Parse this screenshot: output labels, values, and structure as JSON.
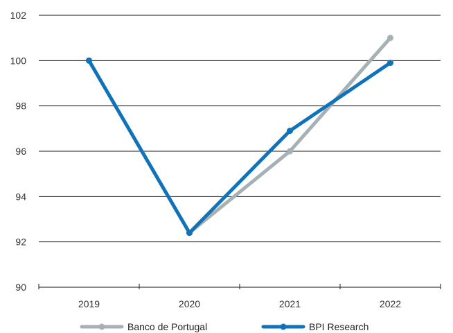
{
  "chart_data": {
    "type": "line",
    "title": "",
    "xlabel": "",
    "ylabel": "",
    "categories": [
      "2019",
      "2020",
      "2021",
      "2022"
    ],
    "ylim": [
      90,
      102
    ],
    "yticks": [
      90,
      92,
      94,
      96,
      98,
      100,
      102
    ],
    "grid": "horizontal",
    "legend_position": "bottom",
    "series": [
      {
        "name": "Banco de Portugal",
        "values": [
          100,
          92.4,
          96.0,
          101.0
        ],
        "color": "#a6b0b5"
      },
      {
        "name": "BPI Research",
        "values": [
          100,
          92.4,
          96.9,
          99.9
        ],
        "color": "#1072b9"
      }
    ]
  }
}
